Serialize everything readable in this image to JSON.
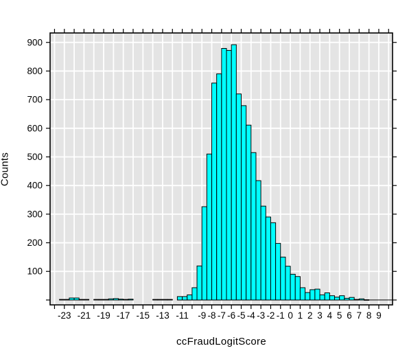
{
  "chart_data": {
    "type": "bar",
    "subtype": "histogram",
    "title": "",
    "xlabel": "ccFraudLogitScore",
    "ylabel": "Counts",
    "bin_width": 0.5,
    "bins": [
      [
        -23.5,
        2
      ],
      [
        -23,
        2
      ],
      [
        -22.5,
        7
      ],
      [
        -22,
        7
      ],
      [
        -21.5,
        2
      ],
      [
        -21,
        2
      ],
      [
        -20,
        2
      ],
      [
        -19.5,
        2
      ],
      [
        -19,
        2
      ],
      [
        -18.5,
        4
      ],
      [
        -18,
        5
      ],
      [
        -17.5,
        3
      ],
      [
        -17,
        2
      ],
      [
        -16.5,
        3
      ],
      [
        -14,
        2
      ],
      [
        -13.5,
        2
      ],
      [
        -13,
        2
      ],
      [
        -12.5,
        2
      ],
      [
        -11.5,
        12
      ],
      [
        -11,
        12
      ],
      [
        -10.5,
        18
      ],
      [
        -10,
        43
      ],
      [
        -9.5,
        119
      ],
      [
        -9,
        326
      ],
      [
        -8.5,
        510
      ],
      [
        -8,
        758
      ],
      [
        -7.5,
        790
      ],
      [
        -7,
        879
      ],
      [
        -6.5,
        872
      ],
      [
        -6,
        892
      ],
      [
        -5.5,
        720
      ],
      [
        -5,
        679
      ],
      [
        -4.5,
        611
      ],
      [
        -4,
        515
      ],
      [
        -3.5,
        417
      ],
      [
        -3,
        328
      ],
      [
        -2.5,
        290
      ],
      [
        -2,
        270
      ],
      [
        -1.5,
        198
      ],
      [
        -1,
        150
      ],
      [
        -0.5,
        118
      ],
      [
        0,
        90
      ],
      [
        0.5,
        82
      ],
      [
        1,
        43
      ],
      [
        1.5,
        26
      ],
      [
        2,
        36
      ],
      [
        2.5,
        38
      ],
      [
        3,
        18
      ],
      [
        3.5,
        25
      ],
      [
        4,
        15
      ],
      [
        4.5,
        10
      ],
      [
        5,
        15
      ],
      [
        5.5,
        6
      ],
      [
        6,
        9
      ],
      [
        6.5,
        2
      ],
      [
        7,
        4
      ],
      [
        7.5,
        1
      ]
    ],
    "xlim": [
      -24.45,
      10.4
    ],
    "ylim": [
      -17,
      933
    ],
    "x_minor_tick_every": 1,
    "x_tick_range": [
      -24,
      10
    ],
    "x_tick_labels": [
      {
        "v": -23,
        "t": "-23"
      },
      {
        "v": -21,
        "t": "-21"
      },
      {
        "v": -19,
        "t": "-19"
      },
      {
        "v": -17,
        "t": "-17"
      },
      {
        "v": -15,
        "t": "-15"
      },
      {
        "v": -13,
        "t": "-13"
      },
      {
        "v": -11,
        "t": "-11"
      },
      {
        "v": -9,
        "t": "-9"
      },
      {
        "v": -8,
        "t": "-8"
      },
      {
        "v": -7,
        "t": "-7"
      },
      {
        "v": -6,
        "t": "-6"
      },
      {
        "v": -5,
        "t": "-5"
      },
      {
        "v": -4,
        "t": "-4"
      },
      {
        "v": -3,
        "t": "-3"
      },
      {
        "v": -2,
        "t": "-2"
      },
      {
        "v": -1,
        "t": "-1"
      },
      {
        "v": 0,
        "t": "0"
      },
      {
        "v": 1,
        "t": "1"
      },
      {
        "v": 2,
        "t": "2"
      },
      {
        "v": 3,
        "t": "3"
      },
      {
        "v": 4,
        "t": "4"
      },
      {
        "v": 5,
        "t": "5"
      },
      {
        "v": 6,
        "t": "6"
      },
      {
        "v": 7,
        "t": "7"
      },
      {
        "v": 8,
        "t": "8"
      },
      {
        "v": 9,
        "t": "9"
      }
    ],
    "y_ticks": [
      0,
      100,
      200,
      300,
      400,
      500,
      600,
      700,
      800,
      900
    ],
    "y_tick_labels": [
      {
        "v": 100,
        "t": "100"
      },
      {
        "v": 200,
        "t": "200"
      },
      {
        "v": 300,
        "t": "300"
      },
      {
        "v": 400,
        "t": "400"
      },
      {
        "v": 500,
        "t": "500"
      },
      {
        "v": 600,
        "t": "600"
      },
      {
        "v": 700,
        "t": "700"
      },
      {
        "v": 800,
        "t": "800"
      },
      {
        "v": 900,
        "t": "900"
      }
    ],
    "grid": {
      "vertical_every": 1,
      "horizontal_every": 100,
      "shown": true
    },
    "legend": "none",
    "ticks_on_all_four_sides": true,
    "zero_line_from_x": -11.5,
    "colors": {
      "bar_fill": "#00FFFF",
      "bar_stroke": "#000000",
      "plot_bg": "#E4E4E4",
      "grid": "#FFFFFF",
      "frame": "#000000",
      "text": "#000000",
      "page_bg": "#FFFFFF"
    }
  }
}
